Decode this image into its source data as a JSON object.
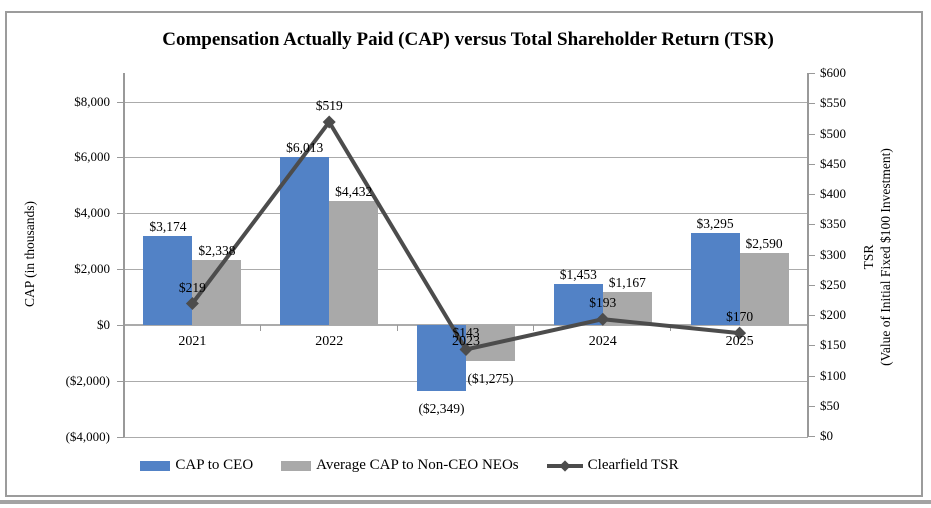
{
  "chart_data": {
    "type": "bar+line",
    "title": "Compensation Actually Paid (CAP) versus Total Shareholder Return (TSR)",
    "categories": [
      "2021",
      "2022",
      "2023",
      "2024",
      "2025"
    ],
    "bar_series": [
      {
        "name": "CAP to CEO",
        "color": "#5282C6",
        "values": [
          3174,
          6013,
          -2349,
          1453,
          3295
        ],
        "labels": [
          "$3,174",
          "$6,013",
          "($2,349)",
          "$1,453",
          "$3,295"
        ]
      },
      {
        "name": "Average CAP to Non-CEO NEOs",
        "color": "#A9A9A9",
        "values": [
          2338,
          4432,
          -1275,
          1167,
          2590
        ],
        "labels": [
          "$2,338",
          "$4,432",
          "($1,275)",
          "$1,167",
          "$2,590"
        ]
      }
    ],
    "line_series": {
      "name": "Clearfield TSR",
      "color": "#4C4C4C",
      "values": [
        219,
        519,
        143,
        193,
        170
      ],
      "labels": [
        "$219",
        "$519",
        "$143",
        "$193",
        "$170"
      ]
    },
    "left_axis": {
      "title": "CAP (in thousands)",
      "min": -4000,
      "max": 8000,
      "step": 2000,
      "tick_labels": [
        "$8,000",
        "$6,000",
        "$4,000",
        "$2,000",
        "$0",
        "($2,000)",
        "($4,000)"
      ]
    },
    "right_axis": {
      "title_line1": "TSR",
      "title_line2": "(Value of Initial Fixed $100 Investment)",
      "min": 0,
      "max": 600,
      "step": 50,
      "tick_labels": [
        "$600",
        "$550",
        "$500",
        "$450",
        "$400",
        "$350",
        "$300",
        "$250",
        "$200",
        "$150",
        "$100",
        "$50",
        "$0"
      ]
    },
    "grid": "horizontal",
    "legend_position": "bottom"
  }
}
